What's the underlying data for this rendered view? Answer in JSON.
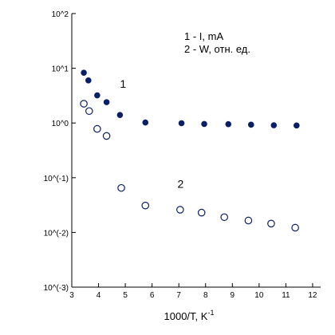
{
  "chart_data": {
    "type": "scatter",
    "xlabel": "1000/T, K",
    "xlabel_superscript": "-1",
    "x_ticks": [
      3,
      4,
      5,
      6,
      7,
      8,
      9,
      10,
      11,
      12
    ],
    "xlim": [
      3,
      12.3
    ],
    "y_scale": "log",
    "ylim": [
      0.001,
      100
    ],
    "y_ticks": [
      {
        "value": 100,
        "label": "10^2"
      },
      {
        "value": 10,
        "label": "10^1"
      },
      {
        "value": 1,
        "label": "10^0"
      },
      {
        "value": 0.1,
        "label": "10^(-1)"
      },
      {
        "value": 0.01,
        "label": "10^(-2)"
      },
      {
        "value": 0.001,
        "label": "10^(-3)"
      }
    ],
    "grid": false,
    "legend": {
      "position": "top-right",
      "entries": [
        "1 - I, mA",
        "2 - W, отн. ед."
      ]
    },
    "series": [
      {
        "name": "1",
        "marker": "filled-circle",
        "color": "#0b1f66",
        "label_at": [
          4.8,
          4.4
        ],
        "x": [
          3.45,
          3.62,
          3.95,
          4.3,
          4.8,
          5.75,
          7.1,
          7.95,
          8.85,
          9.7,
          10.55,
          11.4
        ],
        "y": [
          8.3,
          6.0,
          3.2,
          2.4,
          1.4,
          1.02,
          0.99,
          0.96,
          0.95,
          0.93,
          0.91,
          0.9
        ]
      },
      {
        "name": "2",
        "marker": "open-circle",
        "color": "#0b1f66",
        "label_at": [
          6.95,
          0.065
        ],
        "x": [
          3.45,
          3.65,
          3.95,
          4.3,
          4.85,
          5.75,
          7.05,
          7.85,
          8.7,
          9.6,
          10.45,
          11.35
        ],
        "y": [
          2.25,
          1.65,
          0.78,
          0.58,
          0.065,
          0.031,
          0.026,
          0.023,
          0.019,
          0.0165,
          0.0145,
          0.0122
        ]
      }
    ]
  }
}
